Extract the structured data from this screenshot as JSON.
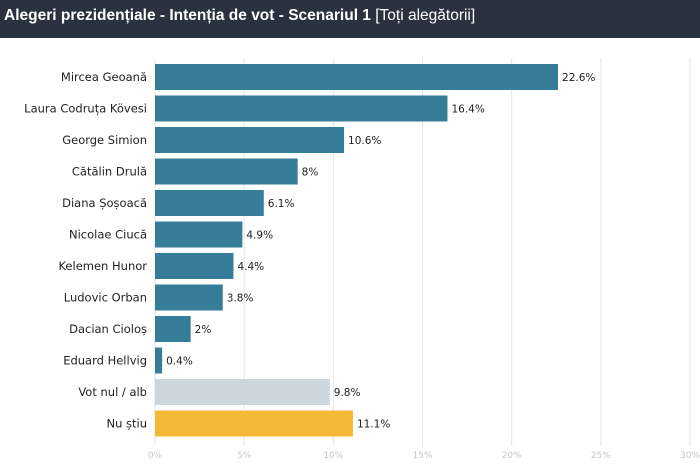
{
  "header": {
    "title": "Alegeri prezidențiale - Intenția de vot - Scenariul 1",
    "subtitle": "[Toți alegătorii]"
  },
  "chart_data": {
    "type": "bar",
    "orientation": "horizontal",
    "categories": [
      "Mircea Geoană",
      "Laura Codruța Kövesi",
      "George Simion",
      "Cătălin Drulă",
      "Diana Șoșoacă",
      "Nicolae Ciucă",
      "Kelemen Hunor",
      "Ludovic Orban",
      "Dacian Cioloș",
      "Eduard Hellvig",
      "Vot nul / alb",
      "Nu știu"
    ],
    "values": [
      22.6,
      16.4,
      10.6,
      8,
      6.1,
      4.9,
      4.4,
      3.8,
      2,
      0.4,
      9.8,
      11.1
    ],
    "value_labels": [
      "22.6%",
      "16.4%",
      "10.6%",
      "8%",
      "6.1%",
      "4.9%",
      "4.4%",
      "3.8%",
      "2%",
      "0.4%",
      "9.8%",
      "11.1%"
    ],
    "colors": [
      "#357d98",
      "#357d98",
      "#357d98",
      "#357d98",
      "#357d98",
      "#357d98",
      "#357d98",
      "#357d98",
      "#357d98",
      "#357d98",
      "#cdd6dc",
      "#f3b936"
    ],
    "xlim": [
      0,
      30
    ],
    "x_ticks": [
      0,
      5,
      10,
      15,
      20,
      25,
      30
    ],
    "x_tick_labels": [
      "0%",
      "5%",
      "10%",
      "15%",
      "20%",
      "25%",
      "30%"
    ],
    "grid": true
  }
}
